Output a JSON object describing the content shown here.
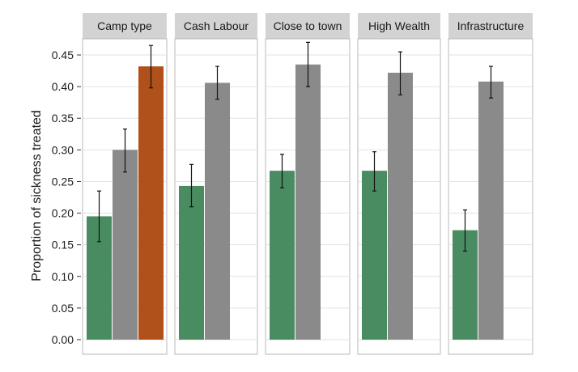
{
  "chart_data": {
    "type": "bar",
    "ylabel": "Proportion of sickness treated",
    "ylim": [
      0,
      0.47
    ],
    "yticks": [
      0.0,
      0.05,
      0.1,
      0.15,
      0.2,
      0.25,
      0.3,
      0.35,
      0.4,
      0.45
    ],
    "ytick_labels": [
      "0.00",
      "0.05",
      "0.10",
      "0.15",
      "0.20",
      "0.25",
      "0.30",
      "0.35",
      "0.40",
      "0.45"
    ],
    "grid": true,
    "colors": {
      "green": "#4a8c62",
      "grey": "#8a8a8a",
      "orange": "#b0501a",
      "strip": "#d3d3d3",
      "grid": "#e2e2e2",
      "panel_border": "#b8b8b8"
    },
    "panels": [
      {
        "title": "Camp type",
        "bars": [
          {
            "value": 0.195,
            "err_low": 0.155,
            "err_high": 0.235,
            "color": "green"
          },
          {
            "value": 0.3,
            "err_low": 0.265,
            "err_high": 0.333,
            "color": "grey"
          },
          {
            "value": 0.432,
            "err_low": 0.398,
            "err_high": 0.465,
            "color": "orange"
          }
        ]
      },
      {
        "title": "Cash Labour",
        "bars": [
          {
            "value": 0.243,
            "err_low": 0.21,
            "err_high": 0.277,
            "color": "green"
          },
          {
            "value": 0.406,
            "err_low": 0.38,
            "err_high": 0.432,
            "color": "grey"
          }
        ]
      },
      {
        "title": "Close to town",
        "bars": [
          {
            "value": 0.267,
            "err_low": 0.24,
            "err_high": 0.293,
            "color": "green"
          },
          {
            "value": 0.435,
            "err_low": 0.4,
            "err_high": 0.47,
            "color": "grey"
          }
        ]
      },
      {
        "title": "High Wealth",
        "bars": [
          {
            "value": 0.267,
            "err_low": 0.235,
            "err_high": 0.297,
            "color": "green"
          },
          {
            "value": 0.422,
            "err_low": 0.387,
            "err_high": 0.455,
            "color": "grey"
          }
        ]
      },
      {
        "title": "Infrastructure",
        "bars": [
          {
            "value": 0.173,
            "err_low": 0.14,
            "err_high": 0.205,
            "color": "green"
          },
          {
            "value": 0.408,
            "err_low": 0.382,
            "err_high": 0.432,
            "color": "grey"
          }
        ]
      }
    ]
  }
}
